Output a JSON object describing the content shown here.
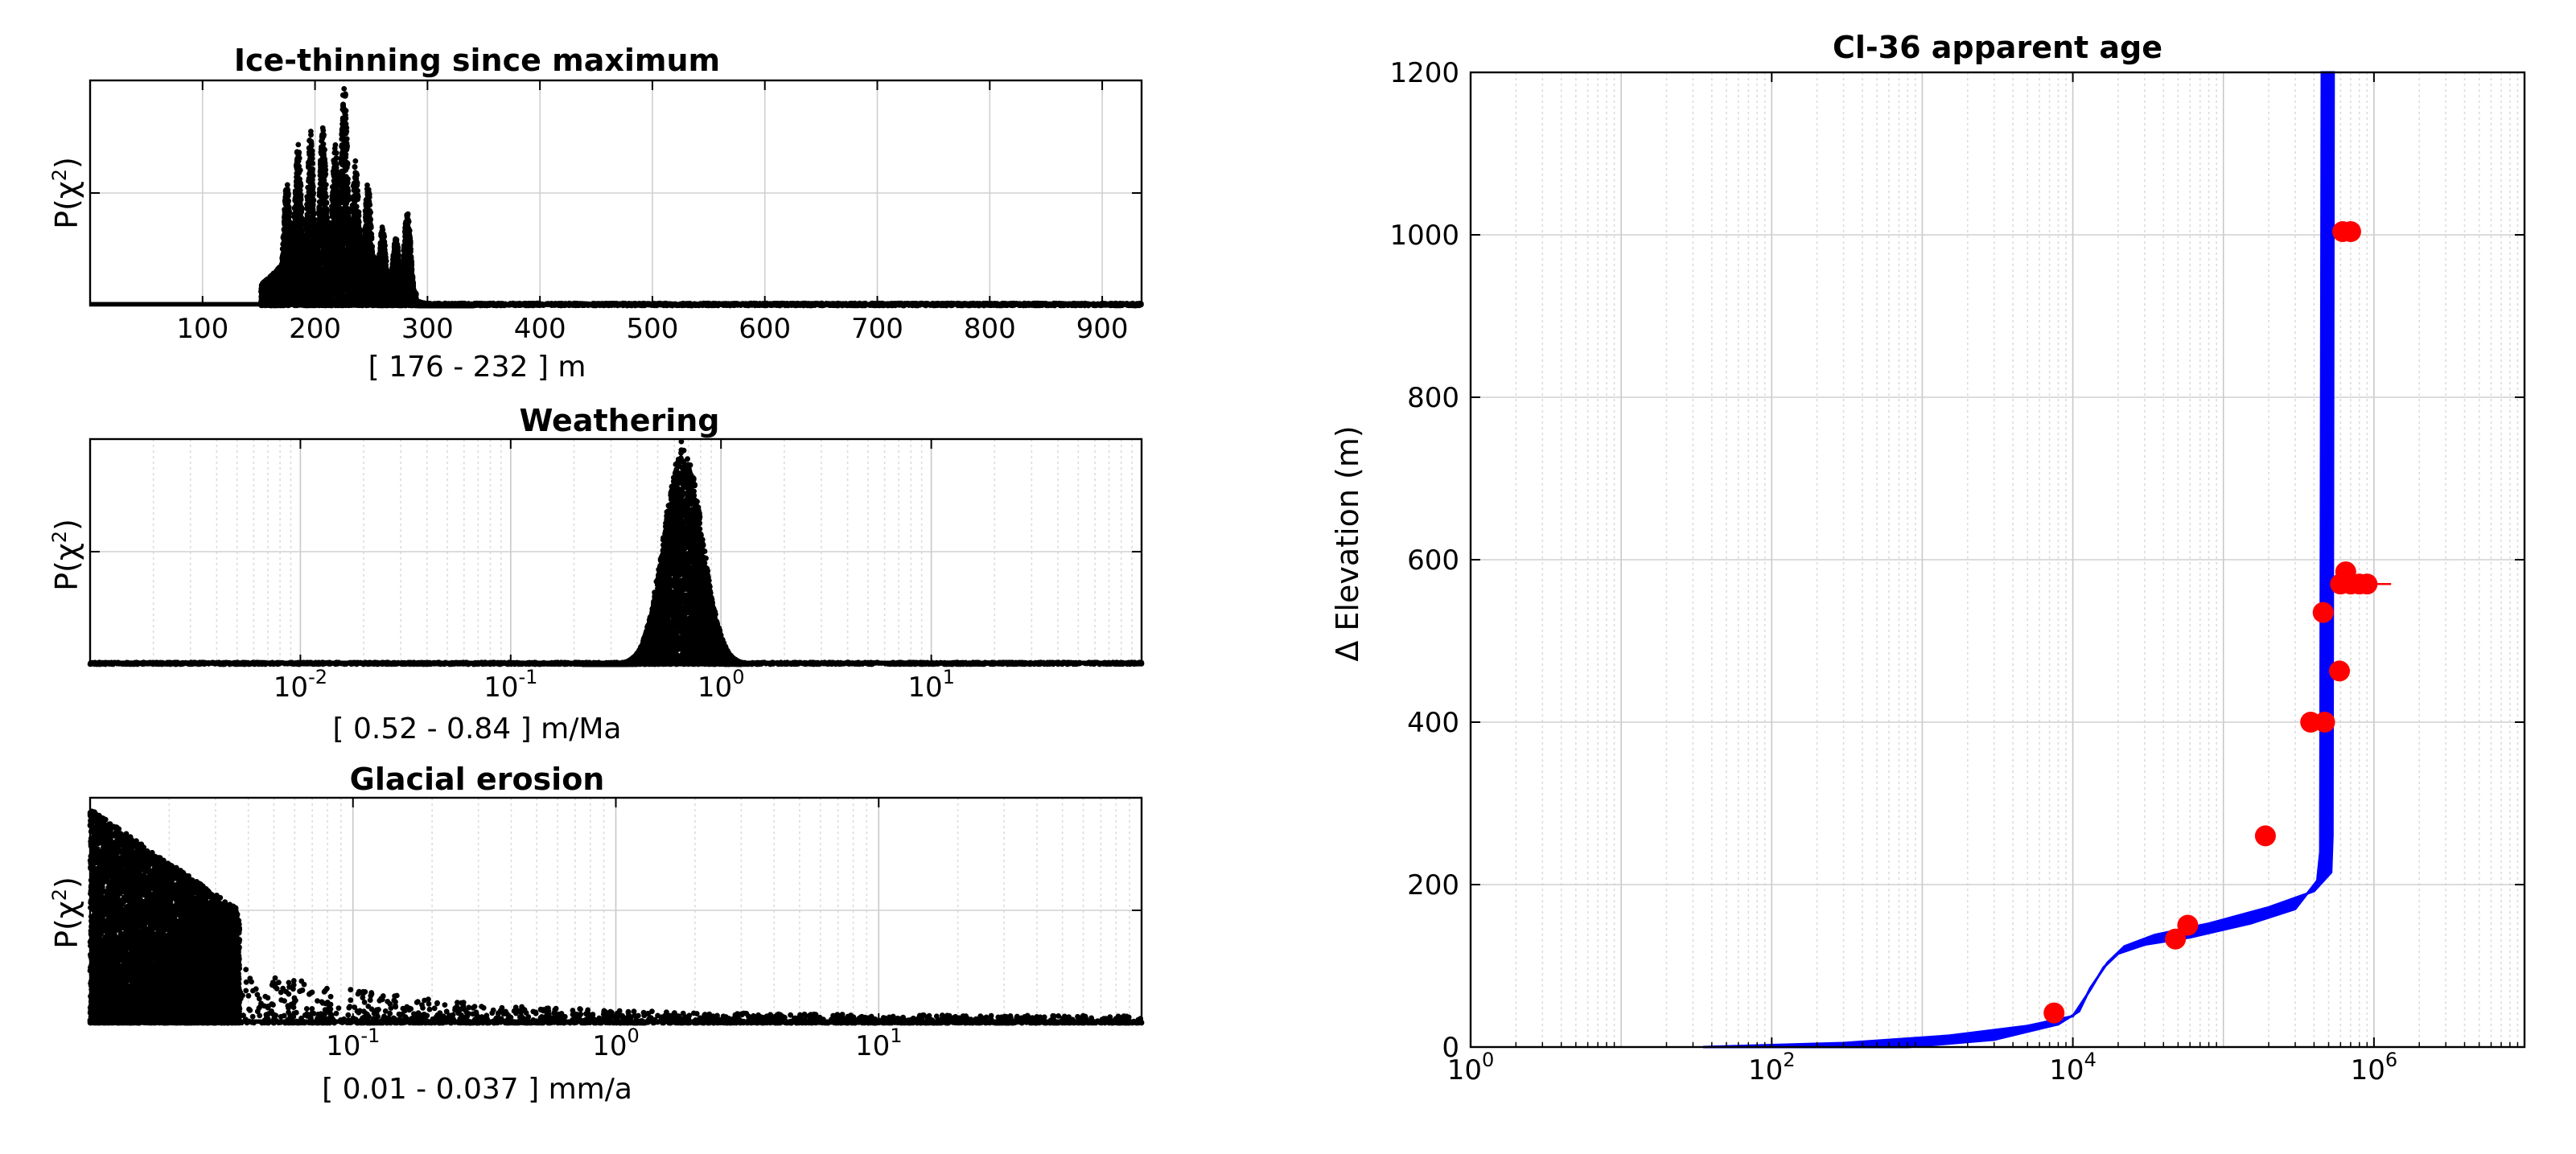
{
  "chart_data": [
    {
      "type": "scatter",
      "title": "Ice-thinning since maximum",
      "xlabel": "[ 176 - 232 ] m",
      "ylabel": "P(χ",
      "ylabel_sup": "2",
      "ylabel_close": ")",
      "xscale": "linear",
      "xlim": [
        0,
        935
      ],
      "ylim": [
        0,
        1
      ],
      "xticks": [
        100,
        200,
        300,
        400,
        500,
        600,
        700,
        800,
        900
      ],
      "xtick_labels": [
        "100",
        "200",
        "300",
        "400",
        "500",
        "600",
        "700",
        "800",
        "900"
      ],
      "grid": true,
      "dist": {
        "kind": "multipeak",
        "peaks": [
          175,
          185,
          196,
          207,
          218,
          226,
          236,
          247,
          260,
          272,
          282
        ],
        "heights": [
          0.55,
          0.72,
          0.78,
          0.8,
          0.72,
          1.0,
          0.65,
          0.55,
          0.35,
          0.3,
          0.42
        ],
        "low": 152,
        "high": 340,
        "tail": 935,
        "seed": 11
      }
    },
    {
      "type": "scatter",
      "title": "Weathering",
      "xlabel": "[ 0.52 - 0.84 ] m/Ma",
      "ylabel": "P(χ",
      "ylabel_sup": "2",
      "ylabel_close": ")",
      "xscale": "log",
      "xlim": [
        0.001,
        100
      ],
      "ylim": [
        0,
        1
      ],
      "xticks": [
        0.01,
        0.1,
        1,
        10
      ],
      "xtick_labels": [
        {
          "base": "10",
          "exp": "-2"
        },
        {
          "base": "10",
          "exp": "-1"
        },
        {
          "base": "10",
          "exp": "0"
        },
        {
          "base": "10",
          "exp": "1"
        }
      ],
      "grid": true,
      "dist": {
        "kind": "lognormal",
        "center": 0.66,
        "sigma": 0.09,
        "low": 0.22,
        "high": 1.25,
        "peak": 1.0,
        "seed": 23
      }
    },
    {
      "type": "scatter",
      "title": "Glacial erosion",
      "xlabel": "[ 0.01 - 0.037 ] mm/a",
      "ylabel": "P(χ",
      "ylabel_sup": "2",
      "ylabel_close": ")",
      "xscale": "log",
      "xlim": [
        0.01,
        100
      ],
      "ylim": [
        0,
        1
      ],
      "xticks": [
        0.1,
        1,
        10
      ],
      "xtick_labels": [
        {
          "base": "10",
          "exp": "-1"
        },
        {
          "base": "10",
          "exp": "0"
        },
        {
          "base": "10",
          "exp": "1"
        }
      ],
      "grid": true,
      "dist": {
        "kind": "decay",
        "low": 0.01,
        "edge": 0.037,
        "high": 100,
        "peak": 1.0,
        "seed": 37
      }
    },
    {
      "type": "line",
      "title": "Cl-36 apparent age",
      "xlabel": "",
      "ylabel": "Δ Elevation (m)",
      "xscale": "log",
      "xlim": [
        1,
        10000000
      ],
      "ylim": [
        0,
        1200
      ],
      "xticks": [
        1,
        100,
        10000,
        1000000
      ],
      "xtick_labels": [
        {
          "base": "10",
          "exp": "0"
        },
        {
          "base": "10",
          "exp": "2"
        },
        {
          "base": "10",
          "exp": "4"
        },
        {
          "base": "10",
          "exp": "6"
        }
      ],
      "yticks": [
        0,
        200,
        400,
        600,
        800,
        1000,
        1200
      ],
      "ytick_labels": [
        "0",
        "200",
        "400",
        "600",
        "800",
        "1000",
        "1200"
      ],
      "grid": true,
      "model_band": {
        "color": "#0000ff",
        "left": [
          [
            35,
            0
          ],
          [
            300,
            5
          ],
          [
            1500,
            14
          ],
          [
            5000,
            26
          ],
          [
            10000,
            38
          ],
          [
            13000,
            70
          ],
          [
            16000,
            98
          ],
          [
            20000,
            115
          ],
          [
            30000,
            126
          ],
          [
            60000,
            135
          ],
          [
            150000,
            152
          ],
          [
            300000,
            170
          ],
          [
            420000,
            205
          ],
          [
            440000,
            240
          ],
          [
            450000,
            1200
          ]
        ],
        "right": [
          [
            800,
            0
          ],
          [
            3000,
            9
          ],
          [
            8000,
            28
          ],
          [
            11000,
            44
          ],
          [
            13000,
            72
          ],
          [
            17000,
            104
          ],
          [
            22000,
            124
          ],
          [
            35000,
            138
          ],
          [
            80000,
            152
          ],
          [
            200000,
            172
          ],
          [
            400000,
            192
          ],
          [
            520000,
            215
          ],
          [
            530000,
            260
          ],
          [
            540000,
            1200
          ]
        ]
      },
      "samples": {
        "color": "#ff0000",
        "points": [
          {
            "x": 7500,
            "y": 42
          },
          {
            "x": 48000,
            "y": 133
          },
          {
            "x": 58000,
            "y": 150
          },
          {
            "x": 190000,
            "y": 260
          },
          {
            "x": 380000,
            "y": 400
          },
          {
            "x": 470000,
            "y": 400
          },
          {
            "x": 460000,
            "y": 535
          },
          {
            "x": 590000,
            "y": 463
          },
          {
            "x": 600000,
            "y": 570
          },
          {
            "x": 650000,
            "y": 585
          },
          {
            "x": 700000,
            "y": 570
          },
          {
            "x": 800000,
            "y": 570
          },
          {
            "x": 900000,
            "y": 570
          },
          {
            "x": 620000,
            "y": 1004
          },
          {
            "x": 700000,
            "y": 1004
          }
        ],
        "errorbar": {
          "x": 800000,
          "y": 570,
          "xmin": 600000,
          "xmax": 1300000
        }
      }
    }
  ]
}
